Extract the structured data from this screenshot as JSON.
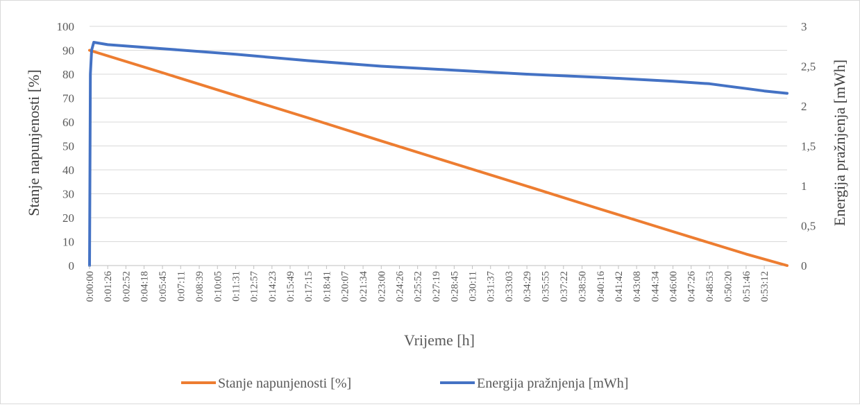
{
  "chart_data": {
    "type": "line",
    "xlabel": "Vrijeme [h]",
    "ylabel_left": "Stanje napunjenosti [%]",
    "ylabel_right": "Energija pražnjenja [mWh]",
    "left_axis": {
      "ylim": [
        0,
        100
      ],
      "ticks": [
        "0",
        "10",
        "20",
        "30",
        "40",
        "50",
        "60",
        "70",
        "80",
        "90",
        "100"
      ]
    },
    "right_axis": {
      "ylim": [
        0,
        3
      ],
      "ticks": [
        "0",
        "0,5",
        "1",
        "1,5",
        "2",
        "2,5",
        "3"
      ]
    },
    "x_range_seconds": [
      0,
      3300
    ],
    "categories": [
      "0:00:00",
      "0:01:26",
      "0:02:52",
      "0:04:18",
      "0:05:45",
      "0:07:11",
      "0:08:39",
      "0:10:05",
      "0:11:31",
      "0:12:57",
      "0:14:23",
      "0:15:49",
      "0:17:15",
      "0:18:41",
      "0:20:07",
      "0:21:34",
      "0:23:00",
      "0:24:26",
      "0:25:52",
      "0:27:19",
      "0:28:45",
      "0:30:11",
      "0:31:37",
      "0:33:03",
      "0:34:29",
      "0:35:55",
      "0:37:22",
      "0:38:50",
      "0:40:16",
      "0:41:42",
      "0:43:08",
      "0:44:34",
      "0:46:00",
      "0:47:26",
      "0:48:53",
      "0:50:20",
      "0:51:46",
      "0:53:12"
    ],
    "grid": true,
    "legend_position": "bottom",
    "series": [
      {
        "name": "Stanje napunjenosti [%]",
        "axis": "left",
        "color": "#ED7D31",
        "x": [
          "0:00:00",
          "0:05:45",
          "0:11:31",
          "0:17:15",
          "0:23:00",
          "0:28:45",
          "0:34:29",
          "0:40:16",
          "0:46:00",
          "0:51:46",
          "0:55:00"
        ],
        "values": [
          90,
          80.6,
          71.1,
          61.7,
          52.1,
          42.6,
          33.2,
          23.6,
          14.2,
          4.8,
          0
        ]
      },
      {
        "name": "Energija pražnjenja [mWh]",
        "axis": "right",
        "color": "#4472C4",
        "x": [
          "0:00:00",
          "0:00:02",
          "0:00:04",
          "0:00:10",
          "0:00:20",
          "0:01:26",
          "0:05:45",
          "0:11:31",
          "0:17:15",
          "0:23:00",
          "0:28:45",
          "0:34:29",
          "0:40:16",
          "0:46:00",
          "0:48:53",
          "0:50:20",
          "0:51:46",
          "0:53:12",
          "0:55:00"
        ],
        "values": [
          0,
          1.2,
          2.4,
          2.7,
          2.8,
          2.77,
          2.72,
          2.65,
          2.57,
          2.5,
          2.45,
          2.4,
          2.36,
          2.31,
          2.28,
          2.25,
          2.22,
          2.19,
          2.16
        ]
      }
    ]
  }
}
